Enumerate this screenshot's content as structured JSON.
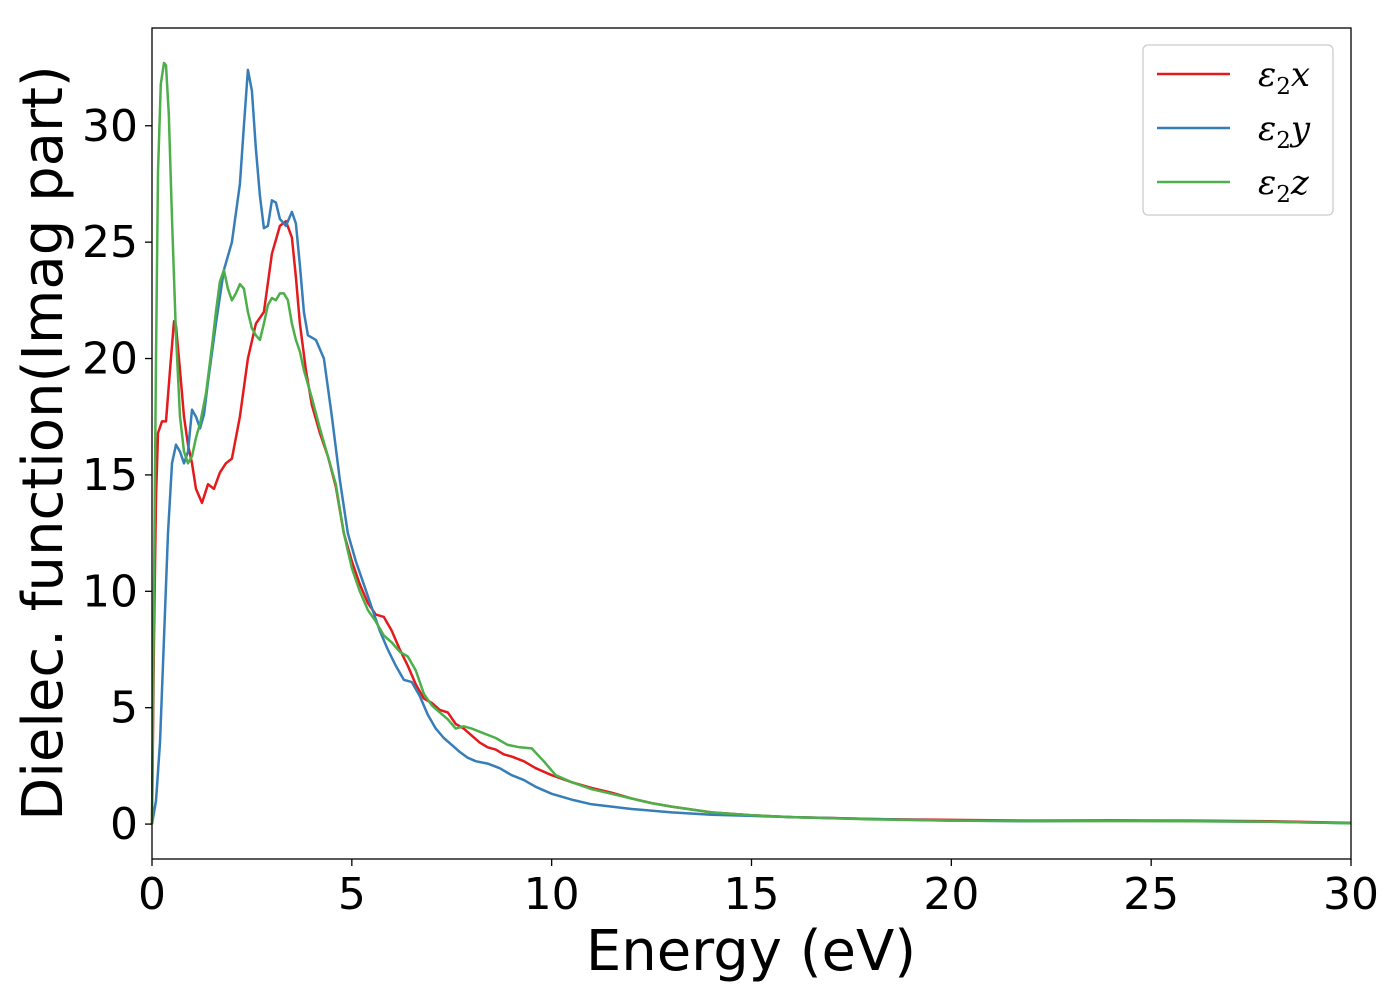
{
  "chart_data": {
    "type": "line",
    "title": "",
    "xlabel": "Energy (eV)",
    "ylabel": "Dielec. function(Imag part)",
    "xlim": [
      0,
      30
    ],
    "ylim": [
      -1.5,
      34.2
    ],
    "xticks": [
      0,
      5,
      10,
      15,
      20,
      25,
      30
    ],
    "yticks": [
      0,
      5,
      10,
      15,
      20,
      25,
      30
    ],
    "grid": false,
    "legend_position": "top-right",
    "series": [
      {
        "name": "ε₂x",
        "legend_main": "ε",
        "legend_sub": "2",
        "legend_suffix": "x",
        "color": "#e41a1c",
        "points": [
          [
            0,
            0
          ],
          [
            0.05,
            8
          ],
          [
            0.1,
            14
          ],
          [
            0.15,
            16.8
          ],
          [
            0.25,
            17.3
          ],
          [
            0.35,
            17.3
          ],
          [
            0.45,
            19.5
          ],
          [
            0.55,
            21.6
          ],
          [
            0.6,
            21.4
          ],
          [
            0.7,
            19.5
          ],
          [
            0.8,
            17.5
          ],
          [
            0.9,
            16.3
          ],
          [
            1.0,
            15.5
          ],
          [
            1.1,
            14.4
          ],
          [
            1.25,
            13.8
          ],
          [
            1.4,
            14.6
          ],
          [
            1.55,
            14.4
          ],
          [
            1.7,
            15.1
          ],
          [
            1.85,
            15.5
          ],
          [
            2.0,
            15.7
          ],
          [
            2.2,
            17.5
          ],
          [
            2.4,
            20.0
          ],
          [
            2.6,
            21.5
          ],
          [
            2.8,
            22.0
          ],
          [
            3.0,
            24.5
          ],
          [
            3.2,
            25.7
          ],
          [
            3.35,
            25.9
          ],
          [
            3.5,
            25.2
          ],
          [
            3.6,
            23.5
          ],
          [
            3.7,
            21.5
          ],
          [
            3.85,
            19.5
          ],
          [
            4.0,
            18.0
          ],
          [
            4.2,
            16.8
          ],
          [
            4.4,
            15.8
          ],
          [
            4.6,
            14.5
          ],
          [
            4.8,
            12.5
          ],
          [
            5.0,
            11.3
          ],
          [
            5.2,
            10.3
          ],
          [
            5.4,
            9.5
          ],
          [
            5.6,
            9.0
          ],
          [
            5.8,
            8.9
          ],
          [
            6.0,
            8.3
          ],
          [
            6.2,
            7.5
          ],
          [
            6.4,
            6.8
          ],
          [
            6.6,
            6.0
          ],
          [
            6.8,
            5.4
          ],
          [
            7.0,
            5.2
          ],
          [
            7.2,
            4.9
          ],
          [
            7.4,
            4.8
          ],
          [
            7.6,
            4.3
          ],
          [
            7.8,
            4.1
          ],
          [
            8.0,
            3.8
          ],
          [
            8.2,
            3.5
          ],
          [
            8.4,
            3.3
          ],
          [
            8.6,
            3.2
          ],
          [
            8.8,
            3.0
          ],
          [
            9.0,
            2.9
          ],
          [
            9.3,
            2.7
          ],
          [
            9.6,
            2.4
          ],
          [
            10.0,
            2.1
          ],
          [
            10.5,
            1.8
          ],
          [
            11.0,
            1.55
          ],
          [
            11.5,
            1.35
          ],
          [
            12.0,
            1.1
          ],
          [
            12.5,
            0.9
          ],
          [
            13.0,
            0.75
          ],
          [
            14.0,
            0.5
          ],
          [
            15.0,
            0.38
          ],
          [
            16.0,
            0.3
          ],
          [
            17.0,
            0.26
          ],
          [
            18.0,
            0.22
          ],
          [
            20.0,
            0.18
          ],
          [
            22.0,
            0.15
          ],
          [
            24.0,
            0.16
          ],
          [
            26.0,
            0.15
          ],
          [
            28.0,
            0.12
          ],
          [
            30.0,
            0.05
          ]
        ]
      },
      {
        "name": "ε₂y",
        "legend_main": "ε",
        "legend_sub": "2",
        "legend_suffix": "y",
        "color": "#377eb8",
        "points": [
          [
            0,
            0
          ],
          [
            0.1,
            1.0
          ],
          [
            0.2,
            3.5
          ],
          [
            0.3,
            8.0
          ],
          [
            0.4,
            12.5
          ],
          [
            0.5,
            15.5
          ],
          [
            0.6,
            16.3
          ],
          [
            0.7,
            16.0
          ],
          [
            0.8,
            15.5
          ],
          [
            0.9,
            16.0
          ],
          [
            1.0,
            17.8
          ],
          [
            1.1,
            17.5
          ],
          [
            1.2,
            17.0
          ],
          [
            1.3,
            17.6
          ],
          [
            1.4,
            19.0
          ],
          [
            1.6,
            21.5
          ],
          [
            1.8,
            23.8
          ],
          [
            2.0,
            25.0
          ],
          [
            2.2,
            27.5
          ],
          [
            2.3,
            30.0
          ],
          [
            2.4,
            32.4
          ],
          [
            2.5,
            31.5
          ],
          [
            2.6,
            29.0
          ],
          [
            2.7,
            27.0
          ],
          [
            2.8,
            25.6
          ],
          [
            2.9,
            25.7
          ],
          [
            3.0,
            26.8
          ],
          [
            3.1,
            26.7
          ],
          [
            3.2,
            26.0
          ],
          [
            3.35,
            25.7
          ],
          [
            3.5,
            26.3
          ],
          [
            3.6,
            25.8
          ],
          [
            3.7,
            24.0
          ],
          [
            3.8,
            22.0
          ],
          [
            3.9,
            21.0
          ],
          [
            4.1,
            20.8
          ],
          [
            4.3,
            20.0
          ],
          [
            4.5,
            17.5
          ],
          [
            4.7,
            14.8
          ],
          [
            4.9,
            12.5
          ],
          [
            5.1,
            11.3
          ],
          [
            5.3,
            10.3
          ],
          [
            5.5,
            9.3
          ],
          [
            5.7,
            8.3
          ],
          [
            5.9,
            7.5
          ],
          [
            6.1,
            6.8
          ],
          [
            6.3,
            6.2
          ],
          [
            6.5,
            6.1
          ],
          [
            6.7,
            5.5
          ],
          [
            6.9,
            4.7
          ],
          [
            7.1,
            4.1
          ],
          [
            7.3,
            3.7
          ],
          [
            7.5,
            3.4
          ],
          [
            7.7,
            3.1
          ],
          [
            7.9,
            2.85
          ],
          [
            8.1,
            2.7
          ],
          [
            8.4,
            2.6
          ],
          [
            8.7,
            2.4
          ],
          [
            9.0,
            2.1
          ],
          [
            9.3,
            1.9
          ],
          [
            9.6,
            1.6
          ],
          [
            10.0,
            1.3
          ],
          [
            10.5,
            1.05
          ],
          [
            11.0,
            0.85
          ],
          [
            11.5,
            0.75
          ],
          [
            12.0,
            0.65
          ],
          [
            13.0,
            0.5
          ],
          [
            14.0,
            0.4
          ],
          [
            15.0,
            0.35
          ],
          [
            16.0,
            0.3
          ],
          [
            18.0,
            0.22
          ],
          [
            20.0,
            0.15
          ],
          [
            22.0,
            0.12
          ],
          [
            24.0,
            0.15
          ],
          [
            26.0,
            0.13
          ],
          [
            28.0,
            0.1
          ],
          [
            30.0,
            0.04
          ]
        ]
      },
      {
        "name": "ε₂z",
        "legend_main": "ε",
        "legend_sub": "2",
        "legend_suffix": "z",
        "color": "#4daf4a",
        "points": [
          [
            0,
            0
          ],
          [
            0.05,
            10
          ],
          [
            0.1,
            20
          ],
          [
            0.15,
            28
          ],
          [
            0.22,
            31.8
          ],
          [
            0.3,
            32.7
          ],
          [
            0.35,
            32.6
          ],
          [
            0.42,
            30.5
          ],
          [
            0.5,
            26.0
          ],
          [
            0.6,
            21.0
          ],
          [
            0.7,
            17.5
          ],
          [
            0.8,
            16.0
          ],
          [
            0.9,
            15.5
          ],
          [
            1.0,
            15.8
          ],
          [
            1.1,
            16.6
          ],
          [
            1.2,
            17.2
          ],
          [
            1.35,
            18.5
          ],
          [
            1.5,
            20.5
          ],
          [
            1.6,
            22.0
          ],
          [
            1.7,
            23.3
          ],
          [
            1.8,
            23.8
          ],
          [
            1.9,
            23.0
          ],
          [
            2.0,
            22.5
          ],
          [
            2.1,
            22.8
          ],
          [
            2.2,
            23.2
          ],
          [
            2.3,
            23.0
          ],
          [
            2.4,
            22.0
          ],
          [
            2.5,
            21.3
          ],
          [
            2.6,
            21.0
          ],
          [
            2.7,
            20.8
          ],
          [
            2.8,
            21.5
          ],
          [
            2.9,
            22.3
          ],
          [
            3.0,
            22.6
          ],
          [
            3.1,
            22.5
          ],
          [
            3.2,
            22.8
          ],
          [
            3.3,
            22.8
          ],
          [
            3.4,
            22.5
          ],
          [
            3.5,
            21.5
          ],
          [
            3.6,
            20.8
          ],
          [
            3.7,
            20.3
          ],
          [
            3.8,
            19.5
          ],
          [
            4.0,
            18.3
          ],
          [
            4.2,
            17.0
          ],
          [
            4.4,
            15.8
          ],
          [
            4.6,
            14.6
          ],
          [
            4.8,
            12.5
          ],
          [
            5.0,
            11.0
          ],
          [
            5.2,
            10.0
          ],
          [
            5.4,
            9.2
          ],
          [
            5.6,
            8.7
          ],
          [
            5.8,
            8.1
          ],
          [
            6.0,
            7.8
          ],
          [
            6.2,
            7.4
          ],
          [
            6.4,
            7.2
          ],
          [
            6.6,
            6.6
          ],
          [
            6.8,
            5.6
          ],
          [
            7.0,
            5.1
          ],
          [
            7.2,
            4.8
          ],
          [
            7.4,
            4.5
          ],
          [
            7.6,
            4.1
          ],
          [
            7.8,
            4.2
          ],
          [
            8.0,
            4.1
          ],
          [
            8.3,
            3.9
          ],
          [
            8.6,
            3.7
          ],
          [
            8.9,
            3.4
          ],
          [
            9.2,
            3.3
          ],
          [
            9.5,
            3.25
          ],
          [
            9.8,
            2.7
          ],
          [
            10.1,
            2.1
          ],
          [
            10.5,
            1.8
          ],
          [
            11.0,
            1.5
          ],
          [
            11.5,
            1.3
          ],
          [
            12.0,
            1.1
          ],
          [
            12.5,
            0.9
          ],
          [
            13.0,
            0.75
          ],
          [
            14.0,
            0.5
          ],
          [
            15.0,
            0.38
          ],
          [
            16.0,
            0.3
          ],
          [
            17.0,
            0.25
          ],
          [
            18.0,
            0.2
          ],
          [
            20.0,
            0.15
          ],
          [
            22.0,
            0.13
          ],
          [
            24.0,
            0.13
          ],
          [
            26.0,
            0.12
          ],
          [
            28.0,
            0.1
          ],
          [
            30.0,
            0.04
          ]
        ]
      }
    ]
  }
}
